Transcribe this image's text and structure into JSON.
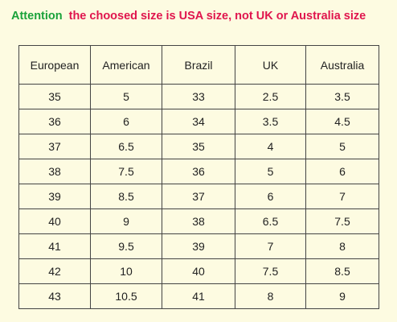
{
  "notice": {
    "attention": "Attention",
    "message": "the choosed size is USA size, not  UK or  Australia size"
  },
  "colors": {
    "attention": "#1aa23a",
    "message": "#e0154d",
    "background": "#fdfbe1"
  },
  "table": {
    "headers": [
      "European",
      "American",
      "Brazil",
      "UK",
      "Australia"
    ],
    "rows": [
      [
        "35",
        "5",
        "33",
        "2.5",
        "3.5"
      ],
      [
        "36",
        "6",
        "34",
        "3.5",
        "4.5"
      ],
      [
        "37",
        "6.5",
        "35",
        "4",
        "5"
      ],
      [
        "38",
        "7.5",
        "36",
        "5",
        "6"
      ],
      [
        "39",
        "8.5",
        "37",
        "6",
        "7"
      ],
      [
        "40",
        "9",
        "38",
        "6.5",
        "7.5"
      ],
      [
        "41",
        "9.5",
        "39",
        "7",
        "8"
      ],
      [
        "42",
        "10",
        "40",
        "7.5",
        "8.5"
      ],
      [
        "43",
        "10.5",
        "41",
        "8",
        "9"
      ]
    ]
  }
}
